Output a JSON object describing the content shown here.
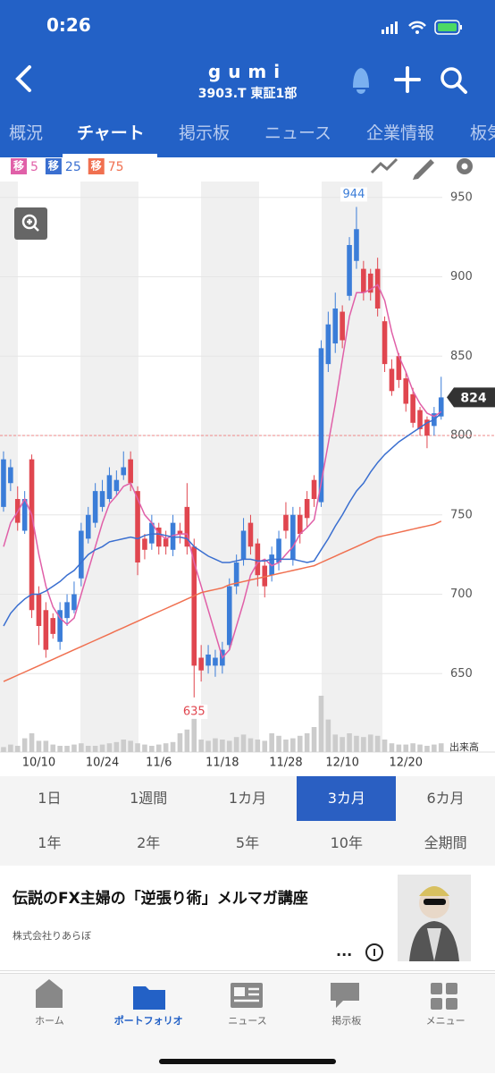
{
  "status_bar": {
    "time": "0:26"
  },
  "header": {
    "title": "gumi",
    "subtitle": "3903.T 東証1部"
  },
  "tabs": [
    {
      "label": "概況"
    },
    {
      "label": "チャート",
      "active": true
    },
    {
      "label": "掲示板"
    },
    {
      "label": "ニュース"
    },
    {
      "label": "企業情報"
    },
    {
      "label": "板気配"
    }
  ],
  "chart_data": {
    "type": "candlestick",
    "ma_tag": "移",
    "up_color": "#3b7dd8",
    "down_color": "#e0464f",
    "categories": [
      null,
      null,
      null,
      null,
      null,
      "10/10",
      null,
      null,
      null,
      null,
      null,
      null,
      null,
      null,
      "10/24",
      null,
      null,
      null,
      null,
      null,
      null,
      null,
      "11/6",
      null,
      null,
      null,
      null,
      null,
      null,
      null,
      null,
      "11/18",
      null,
      null,
      null,
      null,
      null,
      null,
      null,
      null,
      "11/28",
      null,
      null,
      null,
      null,
      null,
      null,
      null,
      "12/10",
      null,
      null,
      null,
      null,
      null,
      null,
      null,
      null,
      "12/20",
      null,
      null,
      null,
      null,
      null
    ],
    "open": [
      755,
      770,
      760,
      740,
      785,
      700,
      690,
      685,
      670,
      685,
      690,
      710,
      735,
      745,
      755,
      760,
      765,
      775,
      785,
      765,
      735,
      732,
      742,
      735,
      728,
      740,
      755,
      730,
      660,
      655,
      655,
      655,
      668,
      705,
      722,
      745,
      732,
      718,
      712,
      720,
      750,
      722,
      750,
      760,
      772,
      758,
      845,
      858,
      878,
      888,
      910,
      905,
      902,
      905,
      872,
      842,
      850,
      836,
      826,
      816,
      810,
      806,
      812
    ],
    "high": [
      790,
      785,
      768,
      765,
      788,
      705,
      695,
      688,
      695,
      700,
      708,
      745,
      755,
      770,
      772,
      780,
      778,
      790,
      790,
      768,
      738,
      750,
      745,
      740,
      750,
      745,
      770,
      735,
      668,
      668,
      665,
      670,
      710,
      725,
      748,
      750,
      735,
      722,
      730,
      740,
      758,
      755,
      755,
      765,
      775,
      860,
      878,
      890,
      882,
      925,
      944,
      910,
      905,
      912,
      875,
      848,
      852,
      840,
      830,
      818,
      812,
      818,
      837
    ],
    "low": [
      752,
      765,
      740,
      738,
      685,
      668,
      660,
      672,
      665,
      680,
      688,
      705,
      732,
      742,
      752,
      758,
      762,
      772,
      765,
      712,
      722,
      728,
      725,
      725,
      724,
      732,
      725,
      635,
      645,
      650,
      648,
      650,
      665,
      700,
      718,
      725,
      705,
      698,
      708,
      715,
      735,
      718,
      732,
      742,
      755,
      755,
      840,
      852,
      855,
      885,
      905,
      885,
      885,
      875,
      840,
      825,
      830,
      815,
      805,
      800,
      792,
      800,
      810
    ],
    "close": [
      785,
      780,
      745,
      760,
      690,
      680,
      665,
      675,
      690,
      695,
      700,
      740,
      750,
      765,
      765,
      775,
      772,
      780,
      770,
      720,
      728,
      745,
      730,
      730,
      745,
      738,
      730,
      655,
      652,
      662,
      660,
      665,
      705,
      720,
      740,
      730,
      712,
      705,
      725,
      735,
      740,
      750,
      738,
      748,
      760,
      855,
      870,
      880,
      860,
      920,
      930,
      890,
      890,
      880,
      845,
      828,
      835,
      820,
      808,
      804,
      800,
      814,
      824
    ],
    "volume": [
      8,
      12,
      10,
      22,
      30,
      18,
      18,
      12,
      10,
      10,
      12,
      14,
      10,
      10,
      12,
      14,
      16,
      20,
      18,
      14,
      12,
      10,
      12,
      14,
      16,
      30,
      36,
      56,
      20,
      18,
      22,
      20,
      18,
      24,
      28,
      22,
      20,
      18,
      30,
      26,
      20,
      22,
      26,
      30,
      40,
      90,
      52,
      28,
      24,
      30,
      26,
      24,
      28,
      26,
      20,
      14,
      12,
      12,
      14,
      12,
      10,
      12,
      14
    ],
    "volume_label": "出来高",
    "series": [
      {
        "name": "5",
        "color": "#e060a8",
        "values": [
          730,
          745,
          752,
          760,
          750,
          725,
          705,
          692,
          685,
          681,
          685,
          700,
          715,
          730,
          745,
          757,
          762,
          768,
          770,
          760,
          750,
          745,
          738,
          735,
          737,
          738,
          738,
          720,
          705,
          690,
          675,
          660,
          665,
          680,
          695,
          712,
          720,
          722,
          718,
          720,
          725,
          730,
          738,
          742,
          747,
          770,
          795,
          820,
          848,
          875,
          890,
          890,
          892,
          895,
          885,
          865,
          850,
          840,
          828,
          820,
          814,
          812,
          815
        ]
      },
      {
        "name": "25",
        "color": "#3a6fd0",
        "values": [
          680,
          688,
          693,
          697,
          700,
          700,
          702,
          705,
          708,
          712,
          715,
          720,
          725,
          728,
          730,
          733,
          734,
          735,
          736,
          735,
          737,
          738,
          738,
          737,
          736,
          736,
          735,
          730,
          727,
          724,
          722,
          720,
          720,
          721,
          722,
          722,
          721,
          721,
          722,
          722,
          722,
          722,
          721,
          720,
          721,
          728,
          735,
          743,
          750,
          758,
          765,
          770,
          777,
          783,
          788,
          792,
          796,
          799,
          802,
          805,
          808,
          810,
          814
        ]
      },
      {
        "name": "75",
        "color": "#f07050",
        "values": [
          645,
          647,
          649,
          651,
          653,
          655,
          657,
          659,
          661,
          663,
          665,
          667,
          669,
          671,
          673,
          675,
          677,
          679,
          681,
          683,
          685,
          687,
          689,
          691,
          693,
          695,
          697,
          699,
          701,
          702,
          703,
          704,
          706,
          707,
          708,
          709,
          710,
          711,
          712,
          713,
          714,
          715,
          716,
          717,
          718,
          720,
          722,
          724,
          726,
          728,
          730,
          732,
          734,
          736,
          737,
          738,
          739,
          740,
          741,
          742,
          743,
          744,
          746
        ]
      }
    ],
    "ylim": [
      640,
      960
    ],
    "yticks": [
      650,
      700,
      750,
      800,
      850,
      900,
      950
    ],
    "grid": true,
    "reference_line": 800
  },
  "periods": [
    [
      {
        "label": "1日"
      },
      {
        "label": "1週間"
      },
      {
        "label": "1カ月"
      },
      {
        "label": "3カ月",
        "selected": true
      },
      {
        "label": "6カ月"
      }
    ],
    [
      {
        "label": "1年"
      },
      {
        "label": "2年"
      },
      {
        "label": "5年"
      },
      {
        "label": "10年"
      },
      {
        "label": "全期間"
      }
    ]
  ],
  "ad": {
    "title": "伝説のFX主婦の「逆張り術」メルマガ講座",
    "sponsor": "株式会社りあらぼ",
    "more": "..."
  },
  "tab_bar": [
    {
      "label": "ホーム"
    },
    {
      "label": "ポートフォリオ",
      "active": true
    },
    {
      "label": "ニュース"
    },
    {
      "label": "掲示板"
    },
    {
      "label": "メニュー"
    }
  ]
}
